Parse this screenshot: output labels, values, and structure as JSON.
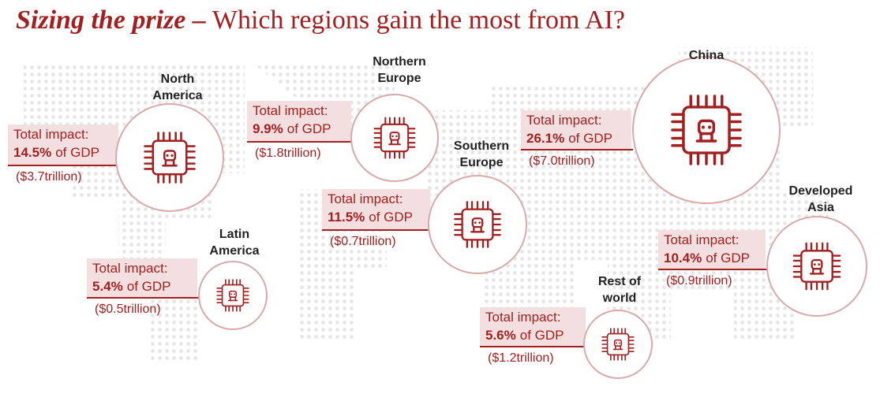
{
  "title": {
    "emphasis": "Sizing the prize –",
    "text": "Which regions gain the most from AI?"
  },
  "regions": [
    {
      "name": [
        "North",
        "America"
      ],
      "impact_label": "Total impact:",
      "percent": "14.5%",
      "suffix": "of GDP",
      "amount": "($3.7trillion)"
    },
    {
      "name": [
        "Northern",
        "Europe"
      ],
      "impact_label": "Total impact:",
      "percent": "9.9%",
      "suffix": "of GDP",
      "amount": "($1.8trillion)"
    },
    {
      "name": [
        "Southern",
        "Europe"
      ],
      "impact_label": "Total impact:",
      "percent": "11.5%",
      "suffix": "of GDP",
      "amount": "($0.7trillion)"
    },
    {
      "name": [
        "China"
      ],
      "impact_label": "Total impact:",
      "percent": "26.1%",
      "suffix": "of GDP",
      "amount": "($7.0trillion)"
    },
    {
      "name": [
        "Latin",
        "America"
      ],
      "impact_label": "Total impact:",
      "percent": "5.4%",
      "suffix": "of GDP",
      "amount": "($0.5trillion)"
    },
    {
      "name": [
        "Developed",
        "Asia"
      ],
      "impact_label": "Total impact:",
      "percent": "10.4%",
      "suffix": "of GDP",
      "amount": "($0.9trillion)"
    },
    {
      "name": [
        "Rest of",
        "world"
      ],
      "impact_label": "Total impact:",
      "percent": "5.6%",
      "suffix": "of GDP",
      "amount": "($1.2trillion)"
    }
  ]
}
